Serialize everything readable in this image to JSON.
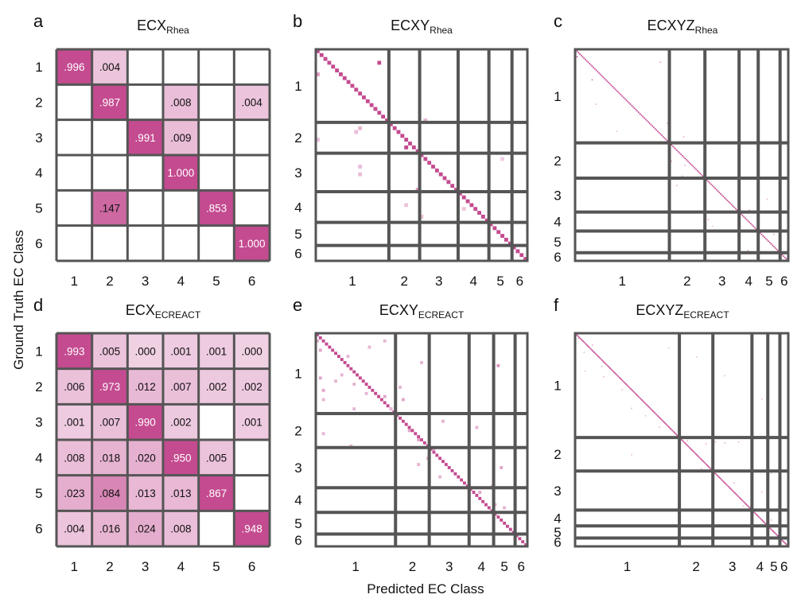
{
  "chart_data": [
    {
      "type": "heatmap",
      "panel": "a",
      "title": "ECX",
      "title_sub": "Rhea",
      "categories": [
        "1",
        "2",
        "3",
        "4",
        "5",
        "6"
      ],
      "values": [
        [
          0.996,
          0.004,
          null,
          null,
          null,
          null
        ],
        [
          null,
          0.987,
          null,
          0.008,
          null,
          0.004
        ],
        [
          null,
          null,
          0.991,
          0.009,
          null,
          null
        ],
        [
          null,
          null,
          null,
          1.0,
          null,
          null
        ],
        [
          null,
          0.147,
          null,
          null,
          0.853,
          null
        ],
        [
          null,
          null,
          null,
          null,
          null,
          1.0
        ]
      ],
      "labels": [
        [
          ".996",
          ".004",
          "",
          "",
          "",
          ""
        ],
        [
          "",
          ".987",
          "",
          ".008",
          "",
          ".004"
        ],
        [
          "",
          "",
          ".991",
          ".009",
          "",
          ""
        ],
        [
          "",
          "",
          "",
          "1.000",
          "",
          ""
        ],
        [
          "",
          ".147",
          "",
          "",
          ".853",
          ""
        ],
        [
          "",
          "",
          "",
          "",
          "",
          "1.000"
        ]
      ]
    },
    {
      "type": "heatmap",
      "panel": "b",
      "title": "ECXY",
      "title_sub": "Rhea",
      "categories": [
        "1",
        "2",
        "3",
        "4",
        "5",
        "6"
      ],
      "class_sizes": [
        19,
        8,
        10,
        8,
        6,
        4
      ],
      "off_diagonal": [
        [
          3,
          16,
          1.0
        ],
        [
          6,
          0,
          0.5
        ],
        [
          23,
          0,
          0.25
        ],
        [
          21,
          10,
          0.25
        ],
        [
          20,
          11,
          0.3
        ],
        [
          18,
          28,
          0.3
        ],
        [
          25,
          23,
          1.0
        ],
        [
          36,
          26,
          0.5
        ],
        [
          28,
          48,
          0.15
        ],
        [
          30,
          11,
          0.25
        ],
        [
          32,
          11,
          0.25
        ],
        [
          40,
          23,
          0.2
        ],
        [
          41,
          38,
          0.2
        ],
        [
          43,
          27,
          0.2
        ]
      ]
    },
    {
      "type": "heatmap",
      "panel": "c",
      "title": "ECXYZ",
      "title_sub": "Rhea",
      "categories": [
        "1",
        "2",
        "3",
        "4",
        "5",
        "6"
      ],
      "class_sizes": [
        69,
        26,
        25,
        14,
        16,
        6
      ],
      "off_diagonal": [
        [
          5,
          1,
          0.8
        ],
        [
          22,
          12,
          0.6
        ],
        [
          9,
          62,
          0.4
        ],
        [
          54,
          67,
          0.3
        ],
        [
          64,
          79,
          0.25
        ],
        [
          70,
          95,
          0.3
        ],
        [
          82,
          70,
          0.4
        ],
        [
          85,
          80,
          0.3
        ],
        [
          93,
          78,
          0.3
        ],
        [
          100,
          74,
          0.3
        ],
        [
          105,
          120,
          0.4
        ],
        [
          118,
          127,
          0.35
        ],
        [
          120,
          88,
          0.3
        ],
        [
          110,
          140,
          0.25
        ],
        [
          125,
          97,
          0.3
        ],
        [
          136,
          145,
          0.3
        ],
        [
          148,
          126,
          0.4
        ],
        [
          140,
          120,
          0.3
        ],
        [
          40,
          15,
          0.25
        ],
        [
          60,
          30,
          0.2
        ],
        [
          95,
          80,
          0.25
        ],
        [
          130,
          100,
          0.2
        ]
      ]
    },
    {
      "type": "heatmap",
      "panel": "d",
      "title": "ECX",
      "title_sub": "ECREACT",
      "categories": [
        "1",
        "2",
        "3",
        "4",
        "5",
        "6"
      ],
      "values": [
        [
          0.993,
          0.005,
          0.0,
          0.001,
          0.001,
          0.0
        ],
        [
          0.006,
          0.973,
          0.012,
          0.007,
          0.002,
          0.002
        ],
        [
          0.001,
          0.007,
          0.99,
          0.002,
          null,
          0.001
        ],
        [
          0.008,
          0.018,
          0.02,
          0.95,
          0.005,
          null
        ],
        [
          0.023,
          0.084,
          0.013,
          0.013,
          0.867,
          null
        ],
        [
          0.004,
          0.016,
          0.024,
          0.008,
          null,
          0.948
        ]
      ],
      "labels": [
        [
          ".993",
          ".005",
          ".000",
          ".001",
          ".001",
          ".000"
        ],
        [
          ".006",
          ".973",
          ".012",
          ".007",
          ".002",
          ".002"
        ],
        [
          ".001",
          ".007",
          ".990",
          ".002",
          "",
          ".001"
        ],
        [
          ".008",
          ".018",
          ".020",
          ".950",
          ".005",
          ""
        ],
        [
          ".023",
          ".084",
          ".013",
          ".013",
          ".867",
          ""
        ],
        [
          ".004",
          ".016",
          ".024",
          ".008",
          "",
          ".948"
        ]
      ]
    },
    {
      "type": "heatmap",
      "panel": "e",
      "title": "ECXY",
      "title_sub": "ECREACT",
      "categories": [
        "1",
        "2",
        "3",
        "4",
        "5",
        "6"
      ],
      "class_sizes": [
        26,
        11,
        13,
        8,
        7,
        4
      ],
      "off_diagonal": [
        [
          2,
          0,
          0.4
        ],
        [
          5,
          1,
          0.4
        ],
        [
          7,
          10,
          0.3
        ],
        [
          4,
          17,
          0.3
        ],
        [
          2,
          22,
          0.3
        ],
        [
          13,
          8,
          0.3
        ],
        [
          14,
          1,
          0.4
        ],
        [
          18,
          2,
          0.4
        ],
        [
          16,
          12,
          0.3
        ],
        [
          20,
          22,
          0.4
        ],
        [
          21,
          28,
          0.4
        ],
        [
          24,
          12,
          0.3
        ],
        [
          17,
          27,
          0.3
        ],
        [
          24,
          24,
          0.3
        ],
        [
          21,
          2,
          0.3
        ],
        [
          31,
          30,
          0.4
        ],
        [
          34,
          33,
          0.4
        ],
        [
          37,
          38,
          0.3
        ],
        [
          32,
          2,
          0.3
        ],
        [
          28,
          41,
          0.3
        ],
        [
          40,
          36,
          0.3
        ],
        [
          42,
          33,
          0.3
        ],
        [
          46,
          40,
          0.3
        ],
        [
          49,
          57,
          0.3
        ],
        [
          51,
          53,
          0.4
        ],
        [
          55,
          58,
          0.3
        ],
        [
          56,
          61,
          0.3
        ],
        [
          9,
          34,
          0.3
        ],
        [
          10,
          59,
          0.5
        ],
        [
          30,
          52,
          0.3
        ],
        [
          43,
          60,
          0.4
        ],
        [
          36,
          11,
          0.3
        ],
        [
          15,
          6,
          0.3
        ],
        [
          19,
          16,
          0.3
        ]
      ]
    },
    {
      "type": "heatmap",
      "panel": "f",
      "title": "ECXYZ",
      "title_sub": "ECREACT",
      "categories": [
        "1",
        "2",
        "3",
        "4",
        "5",
        "6"
      ],
      "class_sizes": [
        112,
        36,
        42,
        17,
        13,
        9
      ],
      "off_diagonal": [
        [
          5,
          3,
          0.4
        ],
        [
          12,
          18,
          0.3
        ],
        [
          20,
          9,
          0.3
        ],
        [
          35,
          28,
          0.3
        ],
        [
          46,
          30,
          0.3
        ],
        [
          60,
          50,
          0.3
        ],
        [
          80,
          60,
          0.3
        ],
        [
          100,
          90,
          0.3
        ],
        [
          115,
          120,
          0.35
        ],
        [
          116,
          150,
          0.35
        ],
        [
          117,
          160,
          0.35
        ],
        [
          116,
          175,
          0.35
        ],
        [
          118,
          140,
          0.35
        ],
        [
          145,
          135,
          0.3
        ],
        [
          160,
          170,
          0.3
        ],
        [
          170,
          200,
          0.3
        ],
        [
          185,
          180,
          0.3
        ],
        [
          190,
          195,
          0.3
        ],
        [
          200,
          210,
          0.3
        ],
        [
          210,
          205,
          0.3
        ],
        [
          205,
          220,
          0.3
        ],
        [
          15,
          100,
          0.25
        ],
        [
          25,
          130,
          0.25
        ],
        [
          45,
          160,
          0.25
        ],
        [
          70,
          200,
          0.25
        ],
        [
          130,
          60,
          0.25
        ],
        [
          150,
          210,
          0.25
        ],
        [
          220,
          225,
          0.3
        ],
        [
          40,
          10,
          0.25
        ],
        [
          88,
          75,
          0.25
        ]
      ]
    }
  ],
  "axes": {
    "ylabel": "Ground Truth EC Class",
    "xlabel": "Predicted EC Class"
  },
  "colors": {
    "diagonal": "#c44b90",
    "low": "#f6e3ef",
    "grid": "#555555"
  }
}
